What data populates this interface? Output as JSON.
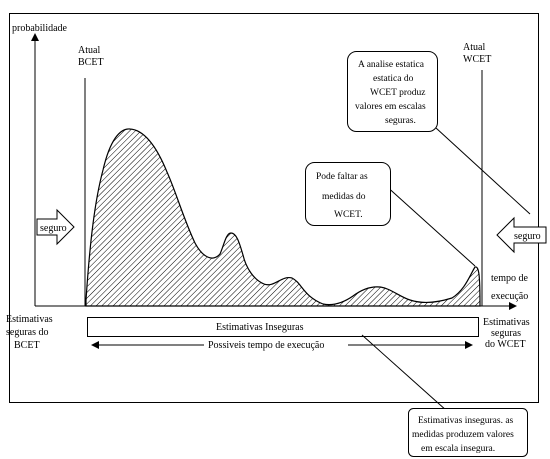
{
  "axes": {
    "y_label": "probabilidade",
    "x_label_line1": "tempo de",
    "x_label_line2": "execução"
  },
  "bcet": {
    "line1": "Atual",
    "line2": "BCET"
  },
  "wcet": {
    "line1": "Atual",
    "line2": "WCET"
  },
  "arrow_left": {
    "label": "seguro"
  },
  "arrow_right": {
    "label": "seguro"
  },
  "callout_top": {
    "line1": "A analise estatica",
    "line2": "estatica do",
    "line3": "WCET produz",
    "line4": "valores  em escalas",
    "line5": "seguras."
  },
  "callout_mid": {
    "line1": "Pode faltar as",
    "line2": "medidas do",
    "line3": "WCET."
  },
  "callout_bottom": {
    "line1": "Estimativas inseguras. as",
    "line2": "medidas produzem valores",
    "line3": "em escala insegura."
  },
  "safe_bcet": {
    "line1": "Estimativas",
    "line2": "seguras do",
    "line3": "BCET"
  },
  "safe_wcet": {
    "line1": "Estimativas",
    "line2": "seguras",
    "line3": "do WCET"
  },
  "unsafe_bar": {
    "label": "Estimativas Inseguras"
  },
  "possible_times": {
    "label": "Possiveis tempo de execução"
  }
}
